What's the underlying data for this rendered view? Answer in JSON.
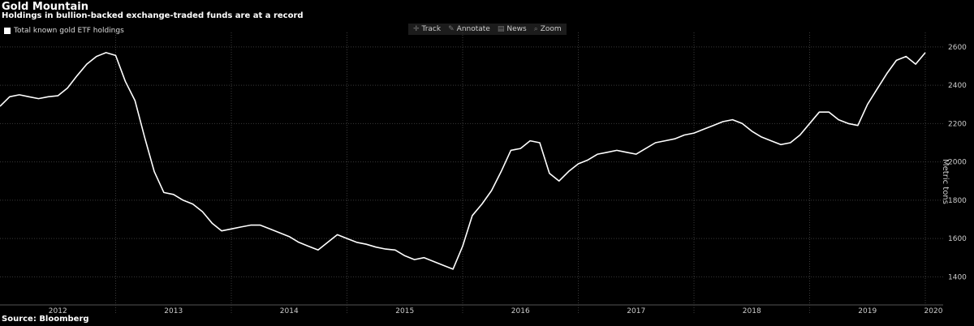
{
  "header": {
    "title": "Gold Mountain",
    "subtitle": "Holdings in bullion-backed exchange-traded funds are at a record"
  },
  "toolbar": {
    "items": [
      {
        "label": "Track",
        "icon": "crosshair-icon"
      },
      {
        "label": "Annotate",
        "icon": "pencil-icon"
      },
      {
        "label": "News",
        "icon": "news-icon"
      },
      {
        "label": "Zoom",
        "icon": "zoom-icon"
      }
    ]
  },
  "source": "Source: Bloomberg",
  "chart_data": {
    "type": "line",
    "title": "Gold Mountain",
    "subtitle": "Holdings in bullion-backed exchange-traded funds are at a record",
    "ylabel": "Metric tons",
    "xlabel": "",
    "ylim": [
      1300,
      2650
    ],
    "yticks": [
      1400,
      1600,
      1800,
      2000,
      2200,
      2400,
      2600
    ],
    "xticks": [
      "2012",
      "2013",
      "2014",
      "2015",
      "2016",
      "2017",
      "2018",
      "2019",
      "2020"
    ],
    "grid": true,
    "legend_position": "top-left",
    "colors": {
      "background": "#000000",
      "line": "#ffffff",
      "grid": "#3a3a3a"
    },
    "series": [
      {
        "name": "Total known gold ETF holdings",
        "x": [
          "2012-01",
          "2012-02",
          "2012-03",
          "2012-04",
          "2012-05",
          "2012-06",
          "2012-07",
          "2012-08",
          "2012-09",
          "2012-10",
          "2012-11",
          "2012-12",
          "2013-01",
          "2013-02",
          "2013-03",
          "2013-04",
          "2013-05",
          "2013-06",
          "2013-07",
          "2013-08",
          "2013-09",
          "2013-10",
          "2013-11",
          "2013-12",
          "2014-01",
          "2014-02",
          "2014-03",
          "2014-04",
          "2014-05",
          "2014-06",
          "2014-07",
          "2014-08",
          "2014-09",
          "2014-10",
          "2014-11",
          "2014-12",
          "2015-01",
          "2015-02",
          "2015-03",
          "2015-04",
          "2015-05",
          "2015-06",
          "2015-07",
          "2015-08",
          "2015-09",
          "2015-10",
          "2015-11",
          "2015-12",
          "2016-01",
          "2016-02",
          "2016-03",
          "2016-04",
          "2016-05",
          "2016-06",
          "2016-07",
          "2016-08",
          "2016-09",
          "2016-10",
          "2016-11",
          "2016-12",
          "2017-01",
          "2017-02",
          "2017-03",
          "2017-04",
          "2017-05",
          "2017-06",
          "2017-07",
          "2017-08",
          "2017-09",
          "2017-10",
          "2017-11",
          "2017-12",
          "2018-01",
          "2018-02",
          "2018-03",
          "2018-04",
          "2018-05",
          "2018-06",
          "2018-07",
          "2018-08",
          "2018-09",
          "2018-10",
          "2018-11",
          "2018-12",
          "2019-01",
          "2019-02",
          "2019-03",
          "2019-04",
          "2019-05",
          "2019-06",
          "2019-07",
          "2019-08",
          "2019-09",
          "2019-10",
          "2019-11",
          "2019-12",
          "2020-01"
        ],
        "values": [
          2290,
          2340,
          2350,
          2340,
          2330,
          2340,
          2345,
          2385,
          2450,
          2510,
          2550,
          2570,
          2555,
          2420,
          2320,
          2130,
          1950,
          1840,
          1830,
          1800,
          1780,
          1740,
          1680,
          1640,
          1650,
          1660,
          1670,
          1670,
          1650,
          1630,
          1610,
          1580,
          1560,
          1540,
          1580,
          1620,
          1600,
          1580,
          1570,
          1555,
          1545,
          1540,
          1510,
          1490,
          1500,
          1480,
          1460,
          1440,
          1560,
          1720,
          1780,
          1850,
          1950,
          2060,
          2070,
          2110,
          2100,
          1940,
          1900,
          1950,
          1990,
          2010,
          2040,
          2050,
          2060,
          2050,
          2040,
          2070,
          2100,
          2110,
          2120,
          2140,
          2150,
          2170,
          2190,
          2210,
          2220,
          2200,
          2160,
          2130,
          2110,
          2090,
          2100,
          2140,
          2200,
          2260,
          2260,
          2220,
          2200,
          2190,
          2300,
          2380,
          2460,
          2530,
          2550,
          2510,
          2570
        ]
      }
    ]
  }
}
